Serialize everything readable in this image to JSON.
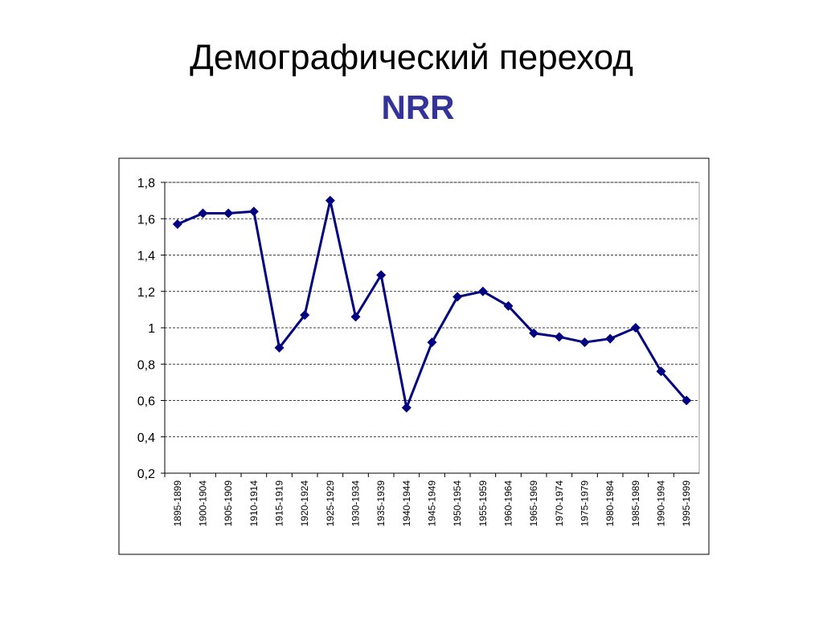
{
  "chart_data": {
    "type": "line",
    "title": "Демографический переход",
    "subtitle": "NRR",
    "categories": [
      "1895-1899",
      "1900-1904",
      "1905-1909",
      "1910-1914",
      "1915-1919",
      "1920-1924",
      "1925-1929",
      "1930-1934",
      "1935-1939",
      "1940-1944",
      "1945-1949",
      "1950-1954",
      "1955-1959",
      "1960-1964",
      "1965-1969",
      "1970-1974",
      "1975-1979",
      "1980-1984",
      "1985-1989",
      "1990-1994",
      "1995-1999"
    ],
    "series": [
      {
        "color": "#000080",
        "values": [
          1.57,
          1.63,
          1.63,
          1.64,
          0.89,
          1.07,
          1.7,
          1.06,
          1.29,
          0.56,
          0.92,
          1.17,
          1.2,
          1.12,
          0.97,
          0.95,
          0.92,
          0.94,
          1.0,
          0.76,
          0.6
        ]
      }
    ],
    "ylim": [
      0.2,
      1.8
    ],
    "yticks": [
      {
        "value": 0.2,
        "label": "0,2"
      },
      {
        "value": 0.4,
        "label": "0,4"
      },
      {
        "value": 0.6,
        "label": "0,6"
      },
      {
        "value": 0.8,
        "label": "0,8"
      },
      1,
      {
        "value": 1.2,
        "label": "1,2"
      },
      {
        "value": 1.4,
        "label": "1,4"
      },
      {
        "value": 1.6,
        "label": "1,6"
      },
      {
        "value": 1.8,
        "label": "1,8"
      }
    ],
    "grid": true
  }
}
